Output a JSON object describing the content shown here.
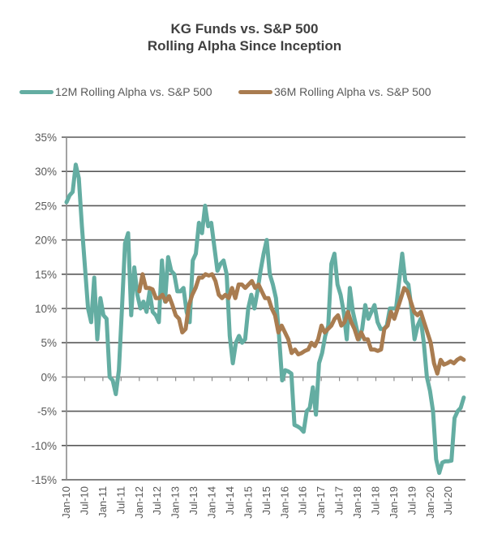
{
  "chart_data": {
    "type": "line",
    "title": "KG Funds vs. S&P 500",
    "subtitle": "Rolling Alpha Since Inception",
    "xlabel": "",
    "ylabel": "",
    "ylim": [
      -15,
      35
    ],
    "y_ticks": [
      35,
      30,
      25,
      20,
      15,
      10,
      5,
      0,
      -5,
      -10,
      -15
    ],
    "y_tick_labels": [
      "35%",
      "30%",
      "25%",
      "20%",
      "15%",
      "10%",
      "5%",
      "0%",
      "-5%",
      "-10%",
      "-15%"
    ],
    "x_tick_labels": [
      "Jan-10",
      "Jul-10",
      "Jan-11",
      "Jul-11",
      "Jan-12",
      "Jul-12",
      "Jan-13",
      "Jul-13",
      "Jan-14",
      "Jul-14",
      "Jan-15",
      "Jul-15",
      "Jan-16",
      "Jul-16",
      "Jan-17",
      "Jul-17",
      "Jan-18",
      "Jul-18",
      "Jan-19",
      "Jul-19",
      "Jan-20",
      "Jul-20"
    ],
    "x_range_months": [
      0,
      131
    ],
    "x_start": "Jan-10",
    "grid": true,
    "legend_position": "top",
    "series": [
      {
        "name": "12M Rolling Alpha vs. S&P 500",
        "color": "#64ADA2",
        "start_month": 0,
        "end_month": 131,
        "values": [
          25.5,
          26.5,
          27,
          31,
          29,
          22,
          16,
          10,
          8,
          14.5,
          5.5,
          11.5,
          9,
          8.5,
          0,
          -0.5,
          -2.5,
          1,
          10,
          19.5,
          21,
          9,
          16,
          12,
          10,
          11,
          9.5,
          12.5,
          9.5,
          9,
          8,
          17,
          11,
          17.5,
          15.5,
          15,
          12.5,
          12.5,
          13,
          9.5,
          8,
          17,
          18,
          22.5,
          21,
          25,
          22,
          22.5,
          19,
          15.5,
          16.5,
          17,
          15,
          6,
          2,
          5,
          6,
          5,
          5.5,
          10,
          12,
          10,
          12.5,
          15.5,
          18,
          20,
          15,
          13.5,
          11.5,
          6,
          -0.5,
          1,
          0.8,
          0.5,
          -7,
          -7.2,
          -7.5,
          -8,
          -5,
          -4.5,
          -1.5,
          -5.5,
          2,
          3.5,
          6,
          7.5,
          16.5,
          18,
          13.5,
          12,
          9.5,
          5.5,
          13,
          9.5,
          7.5,
          5.5,
          7,
          10.5,
          8.5,
          9.5,
          10.5,
          8,
          7,
          7,
          7.5,
          10,
          10,
          10,
          14,
          18,
          14,
          13.5,
          10,
          5.5,
          7.5,
          8.5,
          5,
          0,
          -2,
          -5,
          -12,
          -14,
          -12.5,
          -12.3,
          -12.3,
          -12.2,
          -6,
          -5,
          -4.5,
          -3
        ]
      },
      {
        "name": "36M Rolling Alpha vs. S&P 500",
        "color": "#A97C50",
        "start_month": 24,
        "end_month": 131,
        "values": [
          12.5,
          15,
          13,
          13,
          12.8,
          11.5,
          11.5,
          12,
          11,
          11.8,
          10.5,
          9,
          8.5,
          6.5,
          7,
          10.5,
          12,
          13,
          14.5,
          14.5,
          15,
          14.8,
          15,
          14,
          12,
          11.5,
          12,
          11.5,
          13,
          11.5,
          13.5,
          13.5,
          13,
          13.5,
          14,
          13,
          13.5,
          12.5,
          11.5,
          11.5,
          10,
          9,
          6.5,
          7.5,
          6.5,
          5.5,
          3.5,
          4,
          3.3,
          3.5,
          3.8,
          4,
          5,
          4.5,
          5.5,
          7.5,
          6.5,
          7,
          7.5,
          8.5,
          9,
          7.5,
          8,
          9.5,
          8,
          7,
          5.5,
          6.5,
          5.5,
          5.5,
          4,
          4,
          3.8,
          4,
          7,
          7.5,
          9.5,
          8.5,
          10,
          11.5,
          13,
          12.5,
          11,
          9.5,
          9,
          9.5,
          8,
          6.5,
          5,
          2,
          0.5,
          2.5,
          1.8,
          2,
          2.3,
          2,
          2.5,
          2.8,
          2.5
        ]
      }
    ]
  }
}
